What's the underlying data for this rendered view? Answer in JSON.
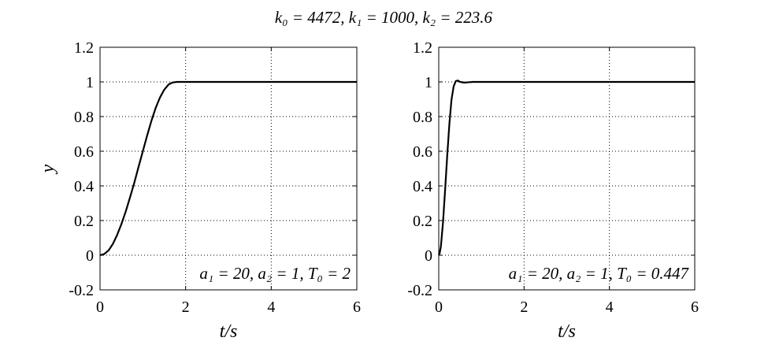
{
  "figure": {
    "title": "k₀ = 4472, k₁ = 1000, k₂ = 223.6"
  },
  "chart_data": [
    {
      "type": "line",
      "title": "",
      "xlabel": "t/s",
      "ylabel": "y",
      "xlim": [
        0,
        6
      ],
      "ylim": [
        -0.2,
        1.2
      ],
      "xticks": [
        "0",
        "2",
        "4",
        "6"
      ],
      "yticks": [
        "-0.2",
        "0",
        "0.2",
        "0.4",
        "0.6",
        "0.8",
        "1",
        "1.2"
      ],
      "grid": "dotted",
      "annotation": "a₁ = 20, a₂ = 1, T₀ = 2",
      "series": [
        {
          "color": "#000000",
          "x": [
            0,
            0.1,
            0.2,
            0.3,
            0.4,
            0.5,
            0.6,
            0.7,
            0.8,
            0.9,
            1.0,
            1.1,
            1.2,
            1.3,
            1.4,
            1.5,
            1.6,
            1.7,
            1.8,
            1.9,
            2.0,
            2.5,
            3.0,
            3.5,
            4.0,
            4.5,
            5.0,
            5.5,
            6.0
          ],
          "y": [
            0,
            0.007,
            0.028,
            0.065,
            0.117,
            0.18,
            0.252,
            0.333,
            0.418,
            0.51,
            0.6,
            0.69,
            0.775,
            0.85,
            0.91,
            0.955,
            0.985,
            0.997,
            1.0,
            1.0,
            1.0,
            1.0,
            1.0,
            1.0,
            1.0,
            1.0,
            1.0,
            1.0,
            1.0
          ]
        }
      ]
    },
    {
      "type": "line",
      "title": "",
      "xlabel": "t/s",
      "ylabel": "",
      "xlim": [
        0,
        6
      ],
      "ylim": [
        -0.2,
        1.2
      ],
      "xticks": [
        "0",
        "2",
        "4",
        "6"
      ],
      "yticks": [
        "-0.2",
        "0",
        "0.2",
        "0.4",
        "0.6",
        "0.8",
        "1",
        "1.2"
      ],
      "grid": "dotted",
      "annotation": "a₁ = 20, a₂ = 1, T₀ = 0.447",
      "series": [
        {
          "color": "#000000",
          "x": [
            0,
            0.02,
            0.05,
            0.1,
            0.15,
            0.2,
            0.25,
            0.3,
            0.35,
            0.4,
            0.45,
            0.5,
            0.6,
            0.7,
            0.8,
            1.0,
            1.5,
            2.0,
            3.0,
            4.0,
            5.0,
            6.0
          ],
          "y": [
            0,
            0.01,
            0.05,
            0.19,
            0.38,
            0.58,
            0.76,
            0.9,
            0.975,
            1.005,
            1.008,
            1.0,
            0.996,
            0.998,
            1.0,
            1.0,
            1.0,
            1.0,
            1.0,
            1.0,
            1.0,
            1.0
          ]
        }
      ]
    }
  ]
}
